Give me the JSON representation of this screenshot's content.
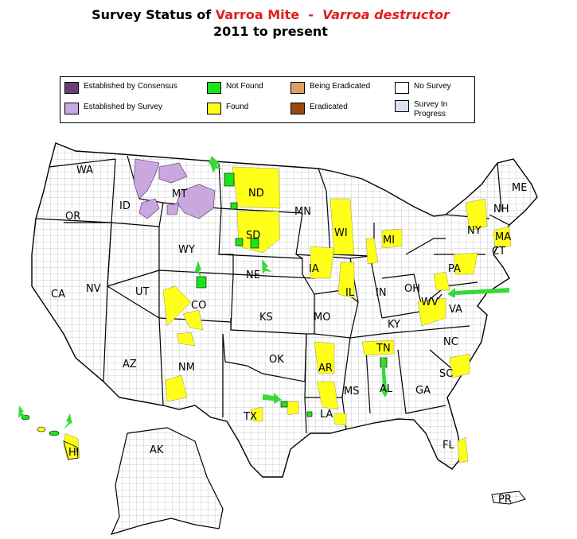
{
  "title": {
    "prefix": "Survey Status of ",
    "common_name": "Varroa Mite",
    "separator": "  -  ",
    "scientific_name": "Varroa destructor",
    "period": "2011 to present"
  },
  "colors": {
    "established_consensus": "#6a3d7a",
    "established_survey": "#c9a7df",
    "not_found": "#19e619",
    "found": "#ffff19",
    "being_eradicated": "#dba060",
    "eradicated": "#9a4a0c",
    "no_survey": "#ffffff",
    "survey_in_progress": "#d9e0f5",
    "arrow": "#3ad93a"
  },
  "legend": [
    {
      "key": "established_consensus",
      "label": "Established by Consensus"
    },
    {
      "key": "established_survey",
      "label": "Established by Survey"
    },
    {
      "key": "not_found",
      "label": "Not Found"
    },
    {
      "key": "found",
      "label": "Found"
    },
    {
      "key": "being_eradicated",
      "label": "Being Eradicated"
    },
    {
      "key": "eradicated",
      "label": "Eradicated"
    },
    {
      "key": "no_survey",
      "label": "No Survey"
    },
    {
      "key": "survey_in_progress",
      "label": "Survey In Progress"
    }
  ],
  "states": [
    "WA",
    "OR",
    "ID",
    "MT",
    "WY",
    "NV",
    "CA",
    "UT",
    "AZ",
    "CO",
    "NM",
    "ND",
    "SD",
    "NE",
    "KS",
    "OK",
    "TX",
    "MN",
    "IA",
    "MO",
    "AR",
    "LA",
    "WI",
    "IL",
    "MS",
    "MI",
    "IN",
    "KY",
    "TN",
    "AL",
    "OH",
    "GA",
    "FL",
    "PA",
    "NY",
    "NC",
    "SC",
    "WV",
    "VA",
    "ME",
    "NH",
    "MA",
    "CT",
    "AK",
    "HI",
    "PR"
  ]
}
